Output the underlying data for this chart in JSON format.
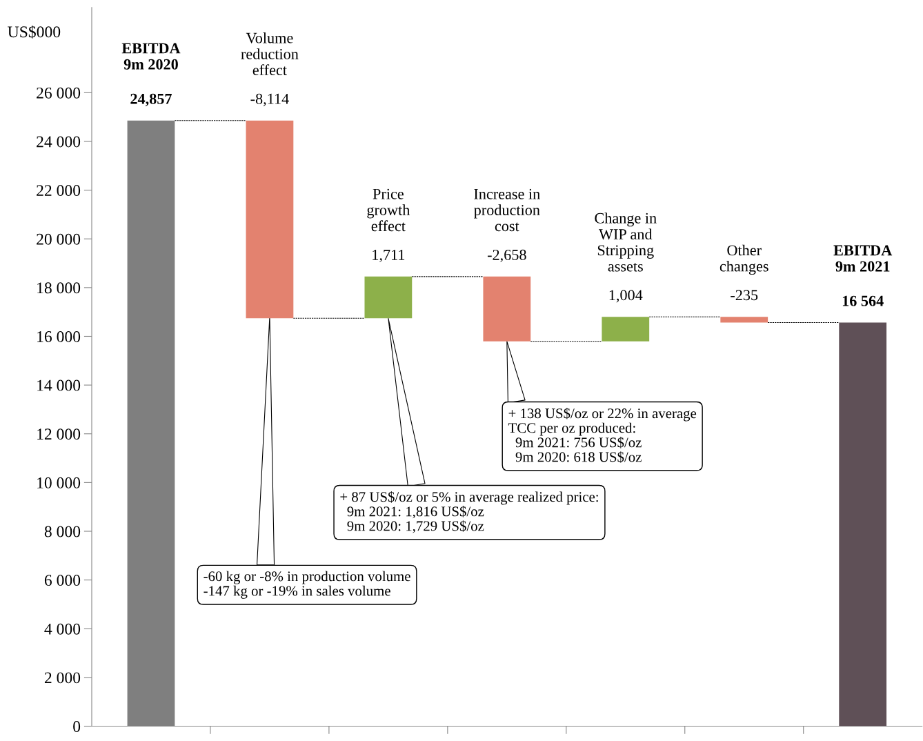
{
  "chart_data": {
    "type": "bar",
    "categories": [
      "EBITDA\n9m 2020",
      "Volume\nreduction\neffect",
      "Price\ngrowth\neffect",
      "Increase in\nproduction\ncost",
      "Change in\nWIP and\nStripping\nassets",
      "Other\nchanges",
      "EBITDA\n9m 2021"
    ],
    "values": [
      24857,
      -8114,
      1711,
      -2658,
      1004,
      -235,
      16564
    ],
    "base": [
      0,
      24857,
      16743,
      18454,
      15796,
      16800,
      0
    ],
    "colors": [
      "#7f7f7f",
      "#e3826f",
      "#8db04a",
      "#e3826f",
      "#8db04a",
      "#e3826f",
      "#5f5057"
    ],
    "value_labels": [
      "24,857",
      "-8,114",
      "1,711",
      "-2,658",
      "1,004",
      "-235",
      "16 564"
    ],
    "ylabel": "US$000",
    "ylim": [
      0,
      29500
    ],
    "yticks": [
      {
        "value": 0,
        "label": "0"
      },
      {
        "value": 2000,
        "label": "2 000"
      },
      {
        "value": 4000,
        "label": "4 000"
      },
      {
        "value": 6000,
        "label": "6 000"
      },
      {
        "value": 8000,
        "label": "8 000"
      },
      {
        "value": 10000,
        "label": "10 000"
      },
      {
        "value": 12000,
        "label": "12 000"
      },
      {
        "value": 14000,
        "label": "14 000"
      },
      {
        "value": 16000,
        "label": "16 000"
      },
      {
        "value": 18000,
        "label": "18 000"
      },
      {
        "value": 20000,
        "label": "20 000"
      },
      {
        "value": 22000,
        "label": "22 000"
      },
      {
        "value": 24000,
        "label": "24 000"
      },
      {
        "value": 26000,
        "label": "26 000"
      }
    ],
    "grid": false,
    "annotations": [
      {
        "text": "-60 kg or -8% in production volume\n-147 kg or -19% in sales volume",
        "x": "Volume\nreduction\neffect",
        "y": 16800
      },
      {
        "text": "+ 87 US$/oz or 5% in average realized price:\n  9m 2021: 1,816 US$/oz\n  9m 2020: 1,729 US$/oz",
        "x": "Price\ngrowth\neffect",
        "y": 16743
      },
      {
        "text": "+ 138 US$/oz or 22% in average\nTCC per oz produced:\n  9m 2021: 756 US$/oz\n  9m 2020: 618 US$/oz",
        "x": "Increase in\nproduction\ncost",
        "y": 15796
      }
    ]
  }
}
